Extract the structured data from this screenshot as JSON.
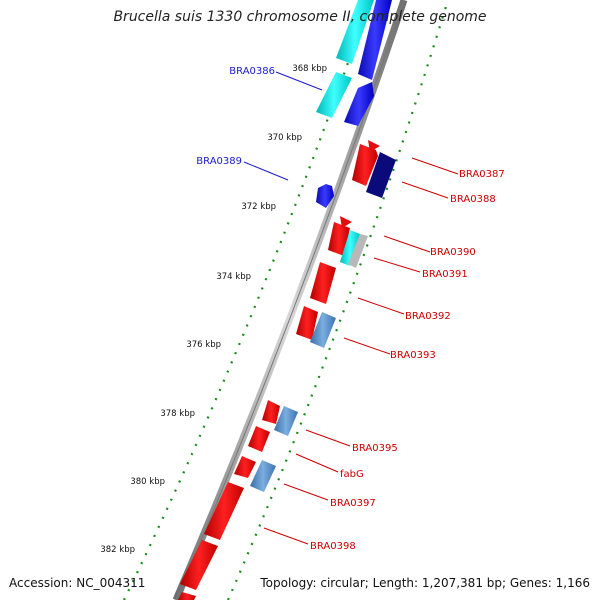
{
  "title": "Brucella suis 1330 chromosome II, complete genome",
  "footer": {
    "accession": "Accession: NC_004311",
    "summary": "Topology: circular; Length: 1,207,381 bp; Genes: 1,166"
  },
  "ruler_labels": [
    "368 kbp",
    "370 kbp",
    "372 kbp",
    "374 kbp",
    "376 kbp",
    "378 kbp",
    "380 kbp",
    "382 kbp"
  ],
  "gene_labels_left": [
    "BRA0386",
    "BRA0389"
  ],
  "gene_labels_right": [
    "BRA0387",
    "BRA0388",
    "BRA0390",
    "BRA0391",
    "BRA0392",
    "BRA0393",
    "BRA0395",
    "fabG",
    "BRA0397",
    "BRA0398"
  ],
  "colors": {
    "backbone": "#8a8a8a",
    "forward_cds": "#2020e0",
    "reverse_cds": "#e01010",
    "rna_cyan": "#00e0e0",
    "misc_feature": "#4f86c0",
    "tick_green": "#1a7a1a",
    "label_blue": "#1a1acc",
    "label_red": "#cc0000"
  }
}
